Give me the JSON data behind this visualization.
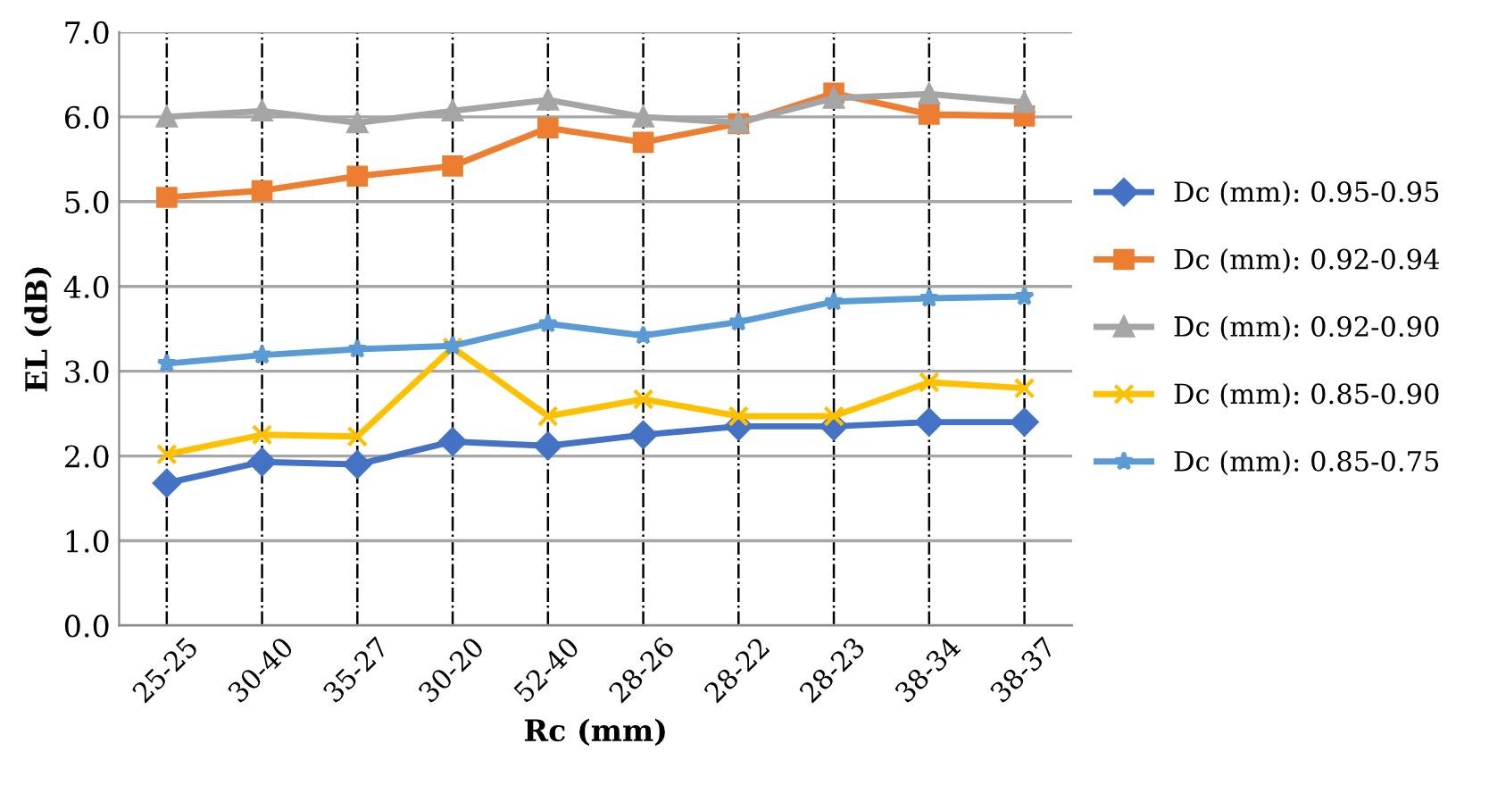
{
  "chart_data": {
    "type": "line",
    "xlabel": "Rc (mm)",
    "ylabel": "EL (dB)",
    "categories": [
      "25-25",
      "30-40",
      "35-27",
      "30-20",
      "52-40",
      "28-26",
      "28-22",
      "28-23",
      "38-34",
      "38-37"
    ],
    "series": [
      {
        "name": "Dc (mm): 0.95-0.95",
        "color": "#4472c4",
        "marker": "diamond",
        "values": [
          1.68,
          1.93,
          1.9,
          2.17,
          2.12,
          2.25,
          2.35,
          2.35,
          2.4,
          2.4
        ]
      },
      {
        "name": "Dc (mm): 0.92-0.94",
        "color": "#ed7d31",
        "marker": "square",
        "values": [
          5.05,
          5.13,
          5.3,
          5.42,
          5.87,
          5.7,
          5.92,
          6.28,
          6.03,
          6.01
        ]
      },
      {
        "name": "Dc (mm): 0.92-0.90",
        "color": "#a5a5a5",
        "marker": "triangle",
        "values": [
          6.0,
          6.07,
          5.93,
          6.07,
          6.2,
          6.0,
          5.93,
          6.22,
          6.27,
          6.17
        ]
      },
      {
        "name": "Dc (mm): 0.85-0.90",
        "color": "#ffc000",
        "marker": "cross",
        "values": [
          2.02,
          2.25,
          2.23,
          3.28,
          2.47,
          2.67,
          2.47,
          2.47,
          2.87,
          2.8
        ]
      },
      {
        "name": "Dc (mm): 0.85-0.75",
        "color": "#5b9bd5",
        "marker": "star",
        "values": [
          3.09,
          3.19,
          3.26,
          3.3,
          3.56,
          3.42,
          3.58,
          3.82,
          3.86,
          3.88
        ]
      }
    ],
    "ylim": [
      0,
      7
    ],
    "yticks": [
      {
        "value": 0,
        "label": "0.0"
      },
      {
        "value": 1,
        "label": "1.0"
      },
      {
        "value": 2,
        "label": "2.0"
      },
      {
        "value": 3,
        "label": "3.0"
      },
      {
        "value": 4,
        "label": "4.0"
      },
      {
        "value": 5,
        "label": "5.0"
      },
      {
        "value": 6,
        "label": "6.0"
      },
      {
        "value": 7,
        "label": "7.0"
      }
    ],
    "grid": true,
    "legend": "right",
    "line_style": "solid"
  }
}
